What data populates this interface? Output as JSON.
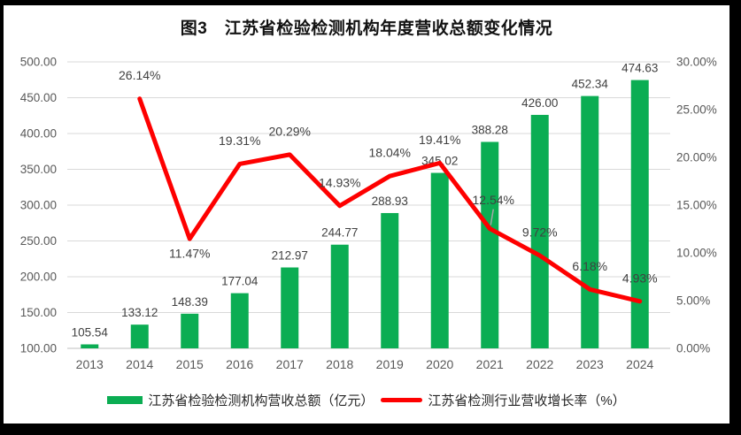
{
  "chart_data": {
    "type": "bar+line combo",
    "title": "图3　江苏省检验检测机构年度营收总额变化情况",
    "categories": [
      "2013",
      "2014",
      "2015",
      "2016",
      "2017",
      "2018",
      "2019",
      "2020",
      "2021",
      "2022",
      "2023",
      "2024"
    ],
    "series": [
      {
        "name": "江苏省检验检测机构营收总额（亿元）",
        "type": "bar",
        "axis": "left",
        "color": "#0BAD53",
        "values": [
          105.54,
          133.12,
          148.39,
          177.04,
          212.97,
          244.77,
          288.93,
          345.02,
          388.28,
          426.0,
          452.34,
          474.63
        ],
        "data_labels": [
          "105.54",
          "133.12",
          "148.39",
          "177.04",
          "212.97",
          "244.77",
          "288.93",
          "345.02",
          "388.28",
          "426.00",
          "452.34",
          "474.63"
        ]
      },
      {
        "name": "江苏省检测行业营收增长率（%）",
        "type": "line",
        "axis": "right",
        "color": "#FE0000",
        "values": [
          null,
          26.14,
          11.47,
          19.31,
          20.29,
          14.93,
          18.04,
          19.41,
          12.54,
          9.72,
          6.18,
          4.93
        ],
        "data_labels": [
          null,
          "26.14%",
          "11.47%",
          "19.31%",
          "20.29%",
          "14.93%",
          "18.04%",
          "19.41%",
          "12.54%",
          "9.72%",
          "6.18%",
          "4.93%"
        ]
      }
    ],
    "left_axis": {
      "min": 100,
      "max": 500,
      "step": 50,
      "tick_labels": [
        "100.00",
        "150.00",
        "200.00",
        "250.00",
        "300.00",
        "350.00",
        "400.00",
        "450.00",
        "500.00"
      ]
    },
    "right_axis": {
      "min": 0,
      "max": 30,
      "step": 5,
      "tick_labels": [
        "0.00%",
        "5.00%",
        "10.00%",
        "15.00%",
        "20.00%",
        "25.00%",
        "30.00%"
      ]
    },
    "gridlines": "horizontal",
    "legend_position": "bottom",
    "colors": {
      "grid": "#D9D9D9",
      "baseline": "#BFBFBF",
      "axis_text": "#595959",
      "data_label_text": "#404040",
      "leader_line": "#A6A6A6",
      "frame": "#000000",
      "panel": "#FFFFFF"
    }
  }
}
